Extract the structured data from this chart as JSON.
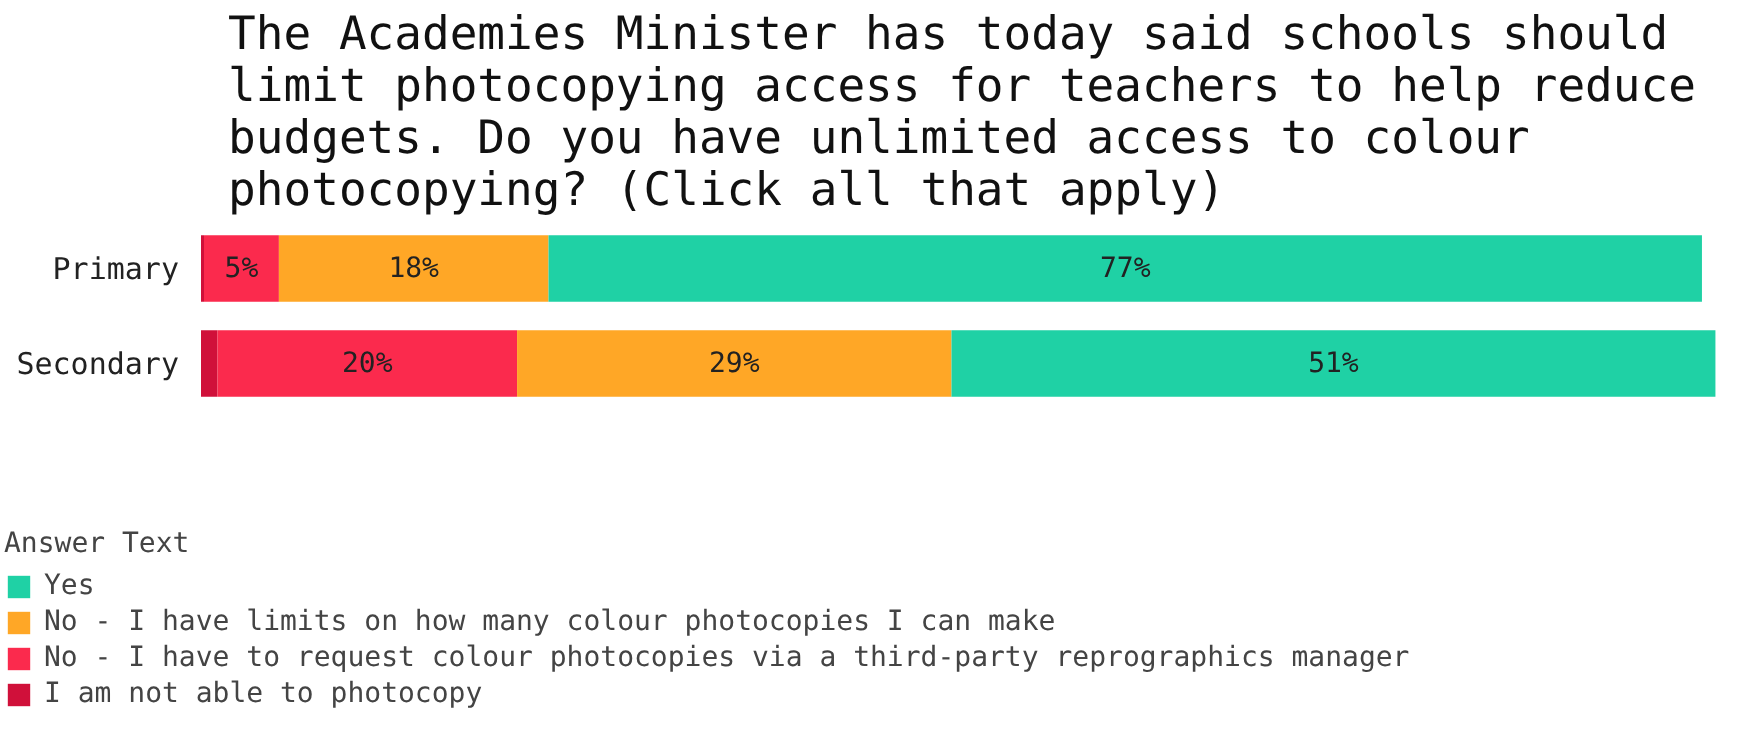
{
  "chart_data": {
    "type": "bar",
    "orientation": "horizontal",
    "stacked": true,
    "title": "The Academies Minister has today said schools should limit photocopying access for teachers to help reduce budgets. Do you have unlimited access to colour photocopying? (Click all that apply)",
    "categories": [
      "Primary",
      "Secondary"
    ],
    "legend_title": "Answer Text",
    "legend": "bottom",
    "series": [
      {
        "name": "I am not able to photocopy",
        "color": "#d0103a",
        "values": [
          0.2,
          1.1
        ],
        "value_labels": [
          null,
          null
        ]
      },
      {
        "name": "No - I have to request colour photocopies via a third-party reprographics manager",
        "color": "#fb2a4d",
        "values": [
          5,
          20
        ],
        "value_labels": [
          "5%",
          "20%"
        ]
      },
      {
        "name": "No - I have limits on how many colour photocopies I can make",
        "color": "#ffa726",
        "values": [
          18,
          29
        ],
        "value_labels": [
          "18%",
          "29%"
        ]
      },
      {
        "name": "Yes",
        "color": "#1fd1a5",
        "values": [
          77,
          51
        ],
        "value_labels": [
          "77%",
          "51%"
        ]
      }
    ]
  }
}
